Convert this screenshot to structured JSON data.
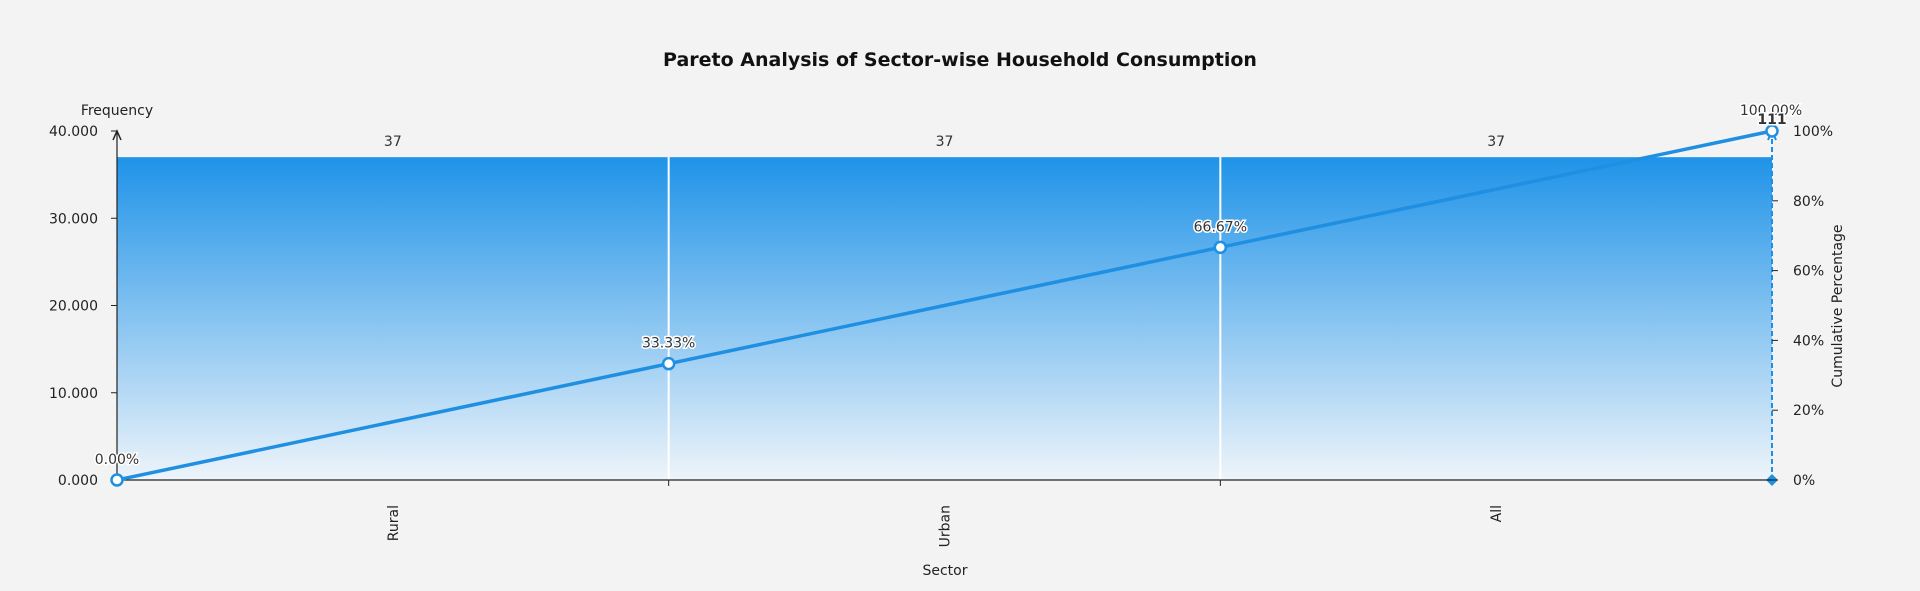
{
  "colors": {
    "background": "#f3f3f3",
    "bar_top": "#1f93e8",
    "bar_bottom": "#eef4fa",
    "line": "#1f8fe2",
    "axis": "#222222"
  },
  "chart_data": {
    "type": "bar",
    "title": "Pareto Analysis of Sector-wise Household Consumption",
    "xlabel": "Sector",
    "ylabel": "Frequency",
    "y2label": "Cumulative Percentage",
    "categories": [
      "Rural",
      "Urban",
      "All"
    ],
    "series": [
      {
        "type": "bar",
        "values": [
          37,
          37,
          37
        ]
      },
      {
        "type": "line",
        "x": [
          0,
          1,
          2,
          3
        ],
        "values": [
          0,
          33.33,
          66.67,
          100
        ]
      }
    ],
    "bar_labels": [
      "37",
      "37",
      "37"
    ],
    "cumulative_labels": [
      "0.00%",
      "33.33%",
      "66.67%",
      "100.00%"
    ],
    "total_label": "111",
    "ylim": [
      0,
      40
    ],
    "y_ticks": [
      "0.000",
      "10.000",
      "20.000",
      "30.000",
      "40.000"
    ],
    "y2lim": [
      0,
      100
    ],
    "y2_ticks": [
      "0%",
      "20%",
      "40%",
      "60%",
      "80%",
      "100%"
    ],
    "grid": false,
    "legend": "none"
  }
}
